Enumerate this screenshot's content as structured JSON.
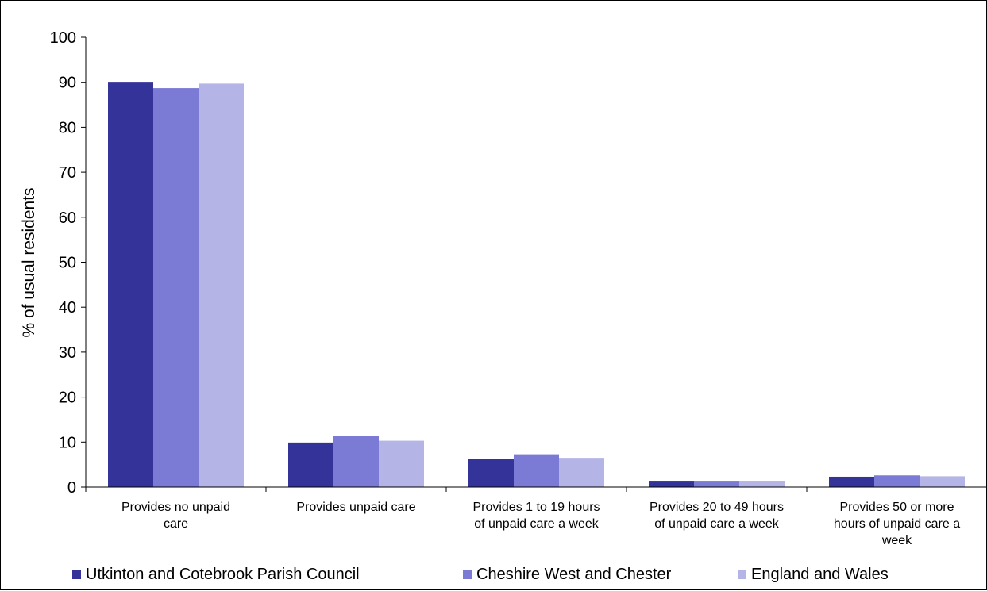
{
  "chart_data": {
    "type": "bar",
    "title": "",
    "xlabel": "",
    "ylabel": "% of usual residents",
    "ylim": [
      0,
      100
    ],
    "yticks": [
      "0",
      "10",
      "20",
      "30",
      "40",
      "50",
      "60",
      "70",
      "80",
      "90",
      "100"
    ],
    "grid": false,
    "legend_position": "bottom",
    "categories": [
      [
        "Provides no unpaid",
        "care"
      ],
      [
        "Provides unpaid care"
      ],
      [
        "Provides 1 to 19 hours",
        "of unpaid care a week"
      ],
      [
        "Provides 20 to 49 hours",
        "of unpaid care a week"
      ],
      [
        "Provides 50 or more",
        "hours of unpaid care a",
        "week"
      ]
    ],
    "series": [
      {
        "name": "Utkinton and Cotebrook Parish Council",
        "color": "#333399",
        "values": [
          90.1,
          9.9,
          6.2,
          1.4,
          2.3
        ]
      },
      {
        "name": "Cheshire West and Chester",
        "color": "#7b7bd6",
        "values": [
          88.7,
          11.3,
          7.3,
          1.4,
          2.6
        ]
      },
      {
        "name": "England and Wales",
        "color": "#b4b4e6",
        "values": [
          89.7,
          10.3,
          6.5,
          1.4,
          2.4
        ]
      }
    ]
  }
}
